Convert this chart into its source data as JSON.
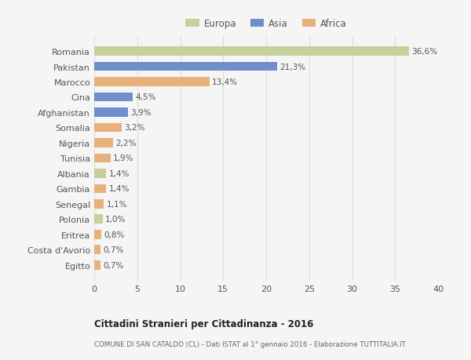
{
  "categories": [
    "Romania",
    "Pakistan",
    "Marocco",
    "Cina",
    "Afghanistan",
    "Somalia",
    "Nigeria",
    "Tunisia",
    "Albania",
    "Gambia",
    "Senegal",
    "Polonia",
    "Eritrea",
    "Costa d'Avorio",
    "Egitto"
  ],
  "values": [
    36.6,
    21.3,
    13.4,
    4.5,
    3.9,
    3.2,
    2.2,
    1.9,
    1.4,
    1.4,
    1.1,
    1.0,
    0.8,
    0.7,
    0.7
  ],
  "labels": [
    "36,6%",
    "21,3%",
    "13,4%",
    "4,5%",
    "3,9%",
    "3,2%",
    "2,2%",
    "1,9%",
    "1,4%",
    "1,4%",
    "1,1%",
    "1,0%",
    "0,8%",
    "0,7%",
    "0,7%"
  ],
  "colors": [
    "#c5d09b",
    "#6e8fc9",
    "#e8b07a",
    "#6e8fc9",
    "#6e8fc9",
    "#e8b07a",
    "#e8b07a",
    "#e8b07a",
    "#c5d09b",
    "#e8b07a",
    "#e8b07a",
    "#c5d09b",
    "#e8b07a",
    "#e8b07a",
    "#e8b07a"
  ],
  "continents": [
    "Europa",
    "Asia",
    "Africa"
  ],
  "legend_colors": [
    "#c5d09b",
    "#6e8fc9",
    "#e8b07a"
  ],
  "xlim": [
    0,
    40
  ],
  "xticks": [
    0,
    5,
    10,
    15,
    20,
    25,
    30,
    35,
    40
  ],
  "title": "Cittadini Stranieri per Cittadinanza - 2016",
  "subtitle": "COMUNE DI SAN CATALDO (CL) - Dati ISTAT al 1° gennaio 2016 - Elaborazione TUTTITALIA.IT",
  "background_color": "#f5f5f5",
  "bar_height": 0.6,
  "grid_color": "#dddddd",
  "text_color": "#555555",
  "title_color": "#222222",
  "subtitle_color": "#666666",
  "label_fontsize": 7.5,
  "ytick_fontsize": 8.0,
  "xtick_fontsize": 8.0,
  "legend_fontsize": 8.5
}
